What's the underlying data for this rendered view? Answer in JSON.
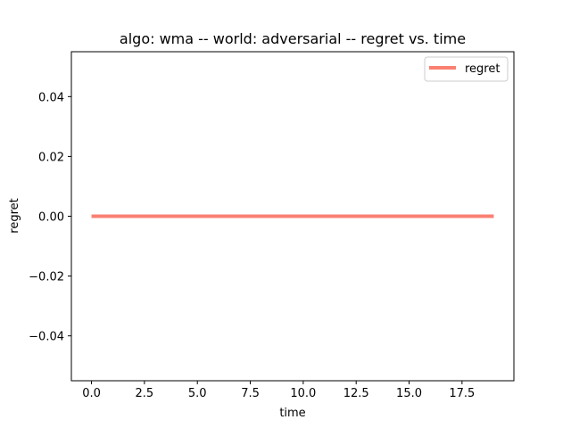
{
  "chart_data": {
    "type": "line",
    "title": "algo: wma -- world: adversarial -- regret vs. time",
    "xlabel": "time",
    "ylabel": "regret",
    "xlim": [
      -0.95,
      19.95
    ],
    "ylim": [
      -0.055,
      0.055
    ],
    "xticks": [
      0,
      2.5,
      5,
      7.5,
      10,
      12.5,
      15,
      17.5
    ],
    "xtick_labels": [
      "0.0",
      "2.5",
      "5.0",
      "7.5",
      "10.0",
      "12.5",
      "15.0",
      "17.5"
    ],
    "yticks": [
      -0.04,
      -0.02,
      0,
      0.02,
      0.04
    ],
    "ytick_labels": [
      "−0.04",
      "−0.02",
      "0.00",
      "0.02",
      "0.04"
    ],
    "grid": false,
    "legend_position": "top-right",
    "series": [
      {
        "name": "regret",
        "color": "#fa8072",
        "x": [
          0,
          1,
          2,
          3,
          4,
          5,
          6,
          7,
          8,
          9,
          10,
          11,
          12,
          13,
          14,
          15,
          16,
          17,
          18,
          19
        ],
        "y": [
          0,
          0,
          0,
          0,
          0,
          0,
          0,
          0,
          0,
          0,
          0,
          0,
          0,
          0,
          0,
          0,
          0,
          0,
          0,
          0
        ]
      }
    ]
  }
}
